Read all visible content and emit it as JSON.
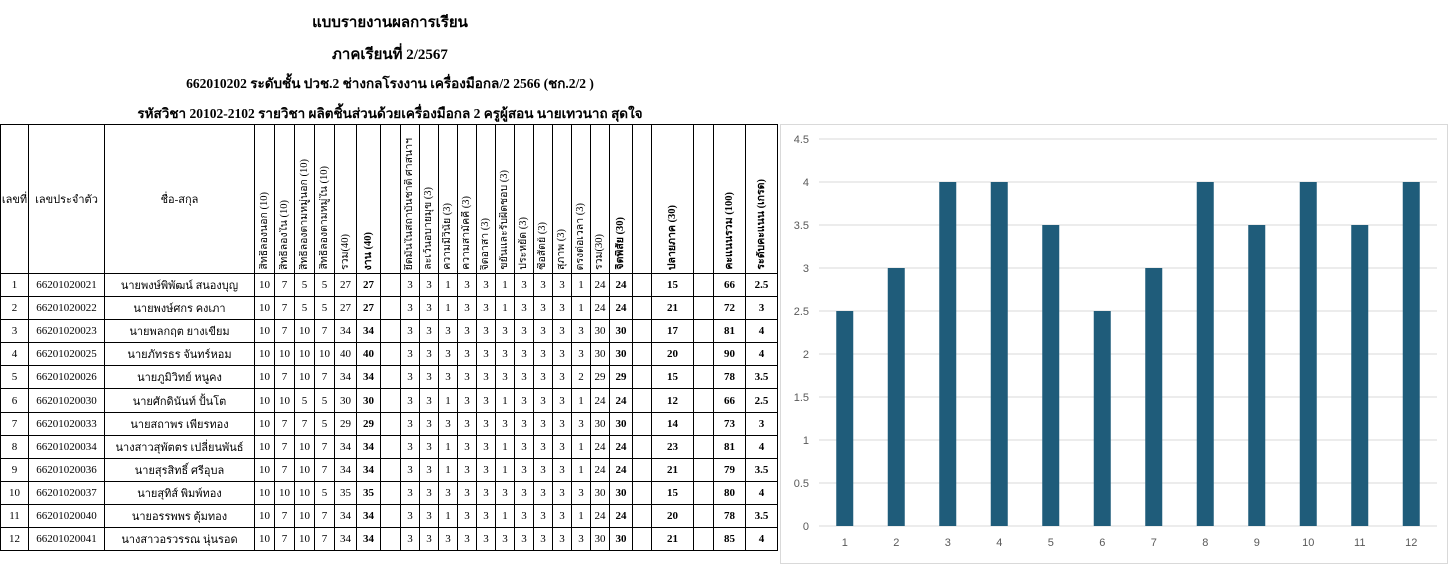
{
  "report": {
    "title": "แบบรายงานผลการเรียน",
    "semester": "ภาคเรียนที่ 2/2567",
    "class_line": "662010202 ระดับชั้น ปวช.2 ช่างกลโรงงาน เครื่องมือกล/2 2566 (ชก.2/2 )",
    "subject_line": "รหัสวิชา 20102-2102    รายวิชา ผลิตชิ้นส่วนด้วยเครื่องมือกล 2    ครูผู้สอน นายเทวนาถ สุดใจ"
  },
  "table": {
    "headers": [
      "เลขที่",
      "เลขประจำตัว",
      "ชื่อ-สกุล",
      "สิทธิ์ลองนอก (10)",
      "สิทธิ์ลองใน (10)",
      "สิทธิ์ลองตามหมู่นอก (10)",
      "สิทธิ์ลองตามหมู่ใน (10)",
      "รวม(40)",
      "งาน (40)",
      "",
      "ยึดมั่นในสถาบันชาติ ศาสนาฯ",
      "ละเว้นอบายมุข (3)",
      "ความมีวินัย (3)",
      "ความสามัคคี (3)",
      "จิตอาสา (3)",
      "ขยันและรับผิดชอบ (3)",
      "ประหยัด (3)",
      "ซื่อสัตย์ (3)",
      "สุภาพ (3)",
      "ตรงต่อเวลา (3)",
      "รวม(30)",
      "จิตพิสัย (30)",
      "",
      "ปลายภาค (30)",
      "",
      "คะแนนรวม (100)",
      "ระดับคะแนน (เกรด)"
    ],
    "rows": [
      {
        "no": "1",
        "id": "66201020021",
        "name": "นายพงษ์พิพัฒน์ สนองบุญ",
        "s": [
          "10",
          "7",
          "5",
          "5",
          "27",
          "27"
        ],
        "a": [
          "3",
          "3",
          "1",
          "3",
          "3",
          "1",
          "3",
          "3",
          "3",
          "1",
          "24",
          "24"
        ],
        "final": "15",
        "total": "66",
        "grade": "2.5"
      },
      {
        "no": "2",
        "id": "66201020022",
        "name": "นายพงษ์ศกร      คงเภา",
        "s": [
          "10",
          "7",
          "5",
          "5",
          "27",
          "27"
        ],
        "a": [
          "3",
          "3",
          "1",
          "3",
          "3",
          "1",
          "3",
          "3",
          "3",
          "1",
          "24",
          "24"
        ],
        "final": "21",
        "total": "72",
        "grade": "3"
      },
      {
        "no": "3",
        "id": "66201020023",
        "name": "นายพลกฤต      ยางเขียม",
        "s": [
          "10",
          "7",
          "10",
          "7",
          "34",
          "34"
        ],
        "a": [
          "3",
          "3",
          "3",
          "3",
          "3",
          "3",
          "3",
          "3",
          "3",
          "3",
          "30",
          "30"
        ],
        "final": "17",
        "total": "81",
        "grade": "4"
      },
      {
        "no": "4",
        "id": "66201020025",
        "name": "นายภัทรธร      จันทร์หอม",
        "s": [
          "10",
          "10",
          "10",
          "10",
          "40",
          "40"
        ],
        "a": [
          "3",
          "3",
          "3",
          "3",
          "3",
          "3",
          "3",
          "3",
          "3",
          "3",
          "30",
          "30"
        ],
        "final": "20",
        "total": "90",
        "grade": "4"
      },
      {
        "no": "5",
        "id": "66201020026",
        "name": "นายภูมิวิทย์      หนูคง",
        "s": [
          "10",
          "7",
          "10",
          "7",
          "34",
          "34"
        ],
        "a": [
          "3",
          "3",
          "3",
          "3",
          "3",
          "3",
          "3",
          "3",
          "3",
          "2",
          "29",
          "29"
        ],
        "final": "15",
        "total": "78",
        "grade": "3.5"
      },
      {
        "no": "6",
        "id": "66201020030",
        "name": "นายศักดินันท์    ปั้นโต",
        "s": [
          "10",
          "10",
          "5",
          "5",
          "30",
          "30"
        ],
        "a": [
          "3",
          "3",
          "1",
          "3",
          "3",
          "1",
          "3",
          "3",
          "3",
          "1",
          "24",
          "24"
        ],
        "final": "12",
        "total": "66",
        "grade": "2.5"
      },
      {
        "no": "7",
        "id": "66201020033",
        "name": "นายสถาพร      เพียรทอง",
        "s": [
          "10",
          "7",
          "7",
          "5",
          "29",
          "29"
        ],
        "a": [
          "3",
          "3",
          "3",
          "3",
          "3",
          "3",
          "3",
          "3",
          "3",
          "3",
          "30",
          "30"
        ],
        "final": "14",
        "total": "73",
        "grade": "3"
      },
      {
        "no": "8",
        "id": "66201020034",
        "name": "นางสาวสุพัตตร เปลี่ยนพันธ์",
        "s": [
          "10",
          "7",
          "10",
          "7",
          "34",
          "34"
        ],
        "a": [
          "3",
          "3",
          "1",
          "3",
          "3",
          "1",
          "3",
          "3",
          "3",
          "1",
          "24",
          "24"
        ],
        "final": "23",
        "total": "81",
        "grade": "4"
      },
      {
        "no": "9",
        "id": "66201020036",
        "name": "นายสุรสิทธิ์      ศรีอุบล",
        "s": [
          "10",
          "7",
          "10",
          "7",
          "34",
          "34"
        ],
        "a": [
          "3",
          "3",
          "1",
          "3",
          "3",
          "1",
          "3",
          "3",
          "3",
          "1",
          "24",
          "24"
        ],
        "final": "21",
        "total": "79",
        "grade": "3.5"
      },
      {
        "no": "10",
        "id": "66201020037",
        "name": "นายสุทิส์      พิมพ์ทอง",
        "s": [
          "10",
          "10",
          "10",
          "5",
          "35",
          "35"
        ],
        "a": [
          "3",
          "3",
          "3",
          "3",
          "3",
          "3",
          "3",
          "3",
          "3",
          "3",
          "30",
          "30"
        ],
        "final": "15",
        "total": "80",
        "grade": "4"
      },
      {
        "no": "11",
        "id": "66201020040",
        "name": "นายอรรพพร      ตุ้มทอง",
        "s": [
          "10",
          "7",
          "10",
          "7",
          "34",
          "34"
        ],
        "a": [
          "3",
          "3",
          "1",
          "3",
          "3",
          "1",
          "3",
          "3",
          "3",
          "1",
          "24",
          "24"
        ],
        "final": "20",
        "total": "78",
        "grade": "3.5"
      },
      {
        "no": "12",
        "id": "66201020041",
        "name": "นางสาวอรวรรณ นุ่นรอด",
        "s": [
          "10",
          "7",
          "10",
          "7",
          "34",
          "34"
        ],
        "a": [
          "3",
          "3",
          "3",
          "3",
          "3",
          "3",
          "3",
          "3",
          "3",
          "3",
          "30",
          "30"
        ],
        "final": "21",
        "total": "85",
        "grade": "4"
      }
    ]
  },
  "chart_data": {
    "type": "bar",
    "categories": [
      "1",
      "2",
      "3",
      "4",
      "5",
      "6",
      "7",
      "8",
      "9",
      "10",
      "11",
      "12"
    ],
    "values": [
      2.5,
      3,
      4,
      4,
      3.5,
      2.5,
      3,
      4,
      3.5,
      4,
      3.5,
      4
    ],
    "ylim": [
      0,
      4.5
    ],
    "yticks": [
      "0",
      "0.5",
      "1",
      "1.5",
      "2",
      "2.5",
      "3",
      "3.5",
      "4",
      "4.5"
    ],
    "title": "",
    "xlabel": "",
    "ylabel": "",
    "grid": true,
    "bar_color": "#1f5c7a"
  }
}
